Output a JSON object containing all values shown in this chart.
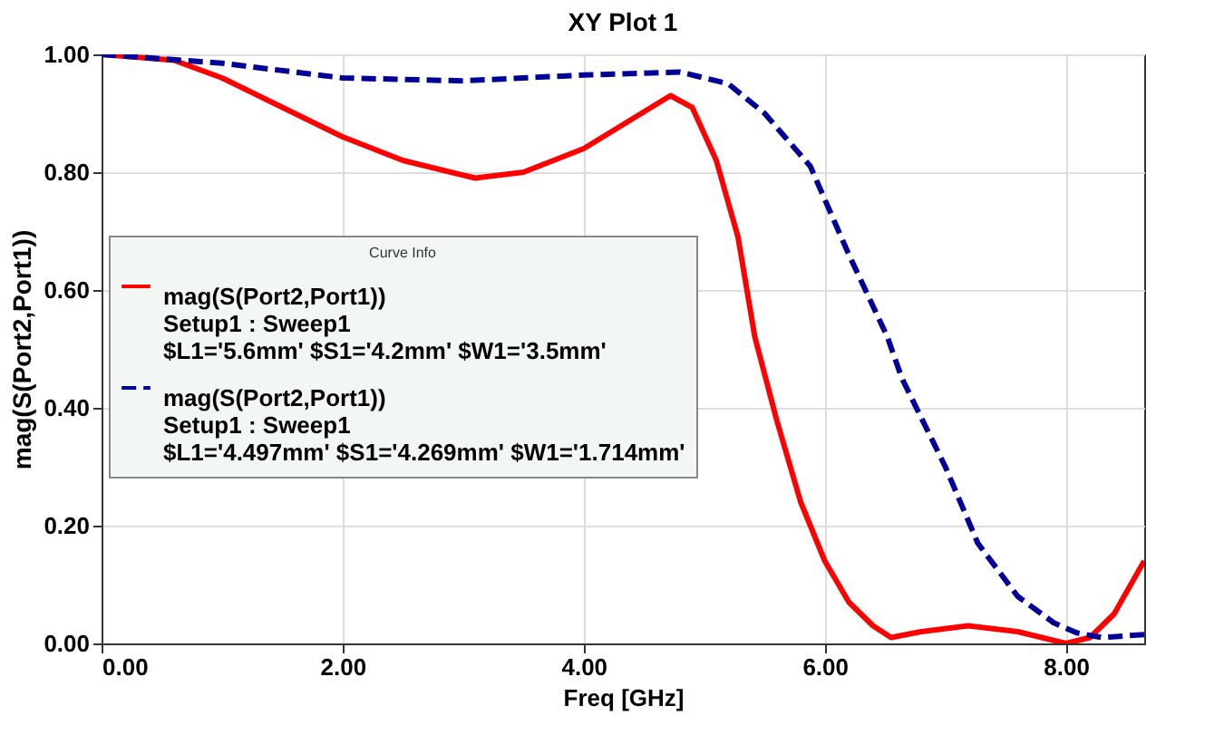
{
  "chart_data": {
    "type": "line",
    "title": "XY Plot 1",
    "xlabel": "Freq [GHz]",
    "ylabel": "mag(S(Port2,Port1))",
    "legend_title": "Curve Info",
    "legend": "left",
    "xlim": [
      0,
      8.65
    ],
    "ylim": [
      0,
      1
    ],
    "xticks": [
      {
        "value": 0,
        "label": "0.00"
      },
      {
        "value": 2,
        "label": "2.00"
      },
      {
        "value": 4,
        "label": "4.00"
      },
      {
        "value": 6,
        "label": "6.00"
      },
      {
        "value": 8,
        "label": "8.00"
      }
    ],
    "yticks": [
      {
        "value": 0,
        "label": "0.00"
      },
      {
        "value": 0.2,
        "label": "0.20"
      },
      {
        "value": 0.4,
        "label": "0.40"
      },
      {
        "value": 0.6,
        "label": "0.60"
      },
      {
        "value": 0.8,
        "label": "0.80"
      },
      {
        "value": 1,
        "label": "1.00"
      }
    ],
    "grid": true,
    "marker": "none",
    "series": [
      {
        "name": "mag(S(Port2,Port1))\nSetup1 : Sweep1\n$L1='5.6mm' $S1='4.2mm' $W1='3.5mm'",
        "color": "#ff0000",
        "line_style": "solid",
        "x": [
          0,
          0.6,
          1.0,
          1.5,
          2.0,
          2.5,
          3.1,
          3.5,
          4.0,
          4.4,
          4.72,
          4.9,
          5.1,
          5.28,
          5.42,
          5.6,
          5.8,
          6.0,
          6.2,
          6.4,
          6.55,
          6.8,
          7.19,
          7.6,
          8.0,
          8.2,
          8.4,
          8.65
        ],
        "values": [
          1.0,
          0.99,
          0.96,
          0.91,
          0.86,
          0.82,
          0.79,
          0.8,
          0.84,
          0.89,
          0.93,
          0.91,
          0.82,
          0.69,
          0.52,
          0.38,
          0.24,
          0.14,
          0.07,
          0.03,
          0.01,
          0.02,
          0.03,
          0.02,
          0.0,
          0.01,
          0.05,
          0.14
        ]
      },
      {
        "name": "mag(S(Port2,Port1))\nSetup1 : Sweep1\n$L1='4.497mm' $S1='4.269mm' $W1='1.714mm'",
        "color": "#000099",
        "line_style": "dashed",
        "x": [
          0,
          1,
          2,
          3,
          4,
          4.8,
          5.2,
          5.5,
          5.88,
          6.2,
          6.52,
          6.64,
          7.0,
          7.27,
          7.6,
          7.9,
          8.09,
          8.3,
          8.65
        ],
        "values": [
          1.0,
          0.985,
          0.96,
          0.955,
          0.965,
          0.97,
          0.95,
          0.9,
          0.81,
          0.66,
          0.52,
          0.45,
          0.3,
          0.17,
          0.08,
          0.035,
          0.018,
          0.01,
          0.015
        ]
      }
    ]
  }
}
